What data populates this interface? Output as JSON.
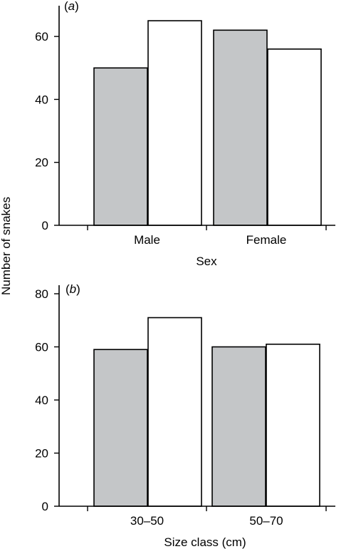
{
  "ylabel": "Number of snakes",
  "colors": {
    "shaded": "#c4c6c8",
    "open": "#ffffff",
    "stroke": "#000000"
  },
  "chart_data": [
    {
      "type": "bar",
      "panel_label_open": "(",
      "panel_label_letter": "a",
      "panel_label_close": ")",
      "categories": [
        "Male",
        "Female"
      ],
      "series": [
        {
          "style": "shaded",
          "values": [
            50,
            62
          ]
        },
        {
          "style": "open",
          "values": [
            65,
            56
          ]
        }
      ],
      "xlabel": "Sex",
      "ylim": [
        0,
        70
      ],
      "yticks": [
        "0",
        "20",
        "40",
        "60"
      ],
      "grid": false
    },
    {
      "type": "bar",
      "panel_label_open": "(",
      "panel_label_letter": "b",
      "panel_label_close": ")",
      "categories": [
        "30–50",
        "50–70"
      ],
      "series": [
        {
          "style": "shaded",
          "values": [
            59,
            60
          ]
        },
        {
          "style": "open",
          "values": [
            71,
            61
          ]
        }
      ],
      "xlabel": "Size class (cm)",
      "ylim": [
        0,
        80
      ],
      "yticks": [
        "0",
        "20",
        "40",
        "60",
        "80"
      ],
      "grid": false
    }
  ]
}
